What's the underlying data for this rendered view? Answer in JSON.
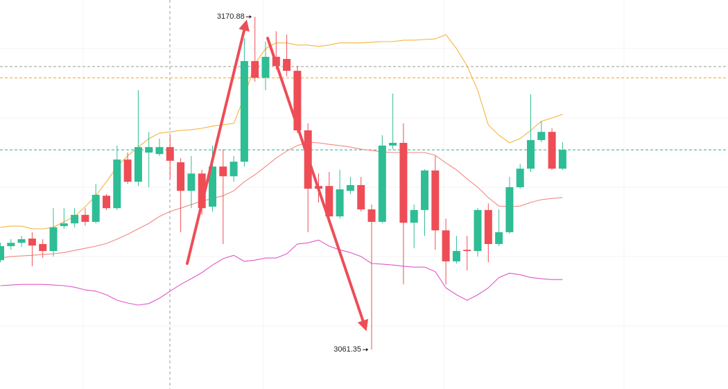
{
  "chart_data": {
    "type": "candlestick",
    "ylim": [
      3048.4,
      3176.4
    ],
    "up_color": "#2ebd95",
    "down_color": "#ee4d56",
    "open": [
      3090.8,
      3095.4,
      3096.5,
      3097.9,
      3096.1,
      3093.8,
      3102.0,
      3102.9,
      3105.7,
      3103.4,
      3112.0,
      3107.9,
      3123.9,
      3116.6,
      3126.2,
      3125.7,
      3128.0,
      3123.0,
      3113.6,
      3119.3,
      3108.4,
      3121.6,
      3118.4,
      3123.2,
      3156.3,
      3150.8,
      3157.7,
      3157.0,
      3153.1,
      3133.5,
      3115.2,
      3115.2,
      3105.2,
      3113.6,
      3115.5,
      3107.5,
      3103.4,
      3128.5,
      3129.4,
      3103.1,
      3107.3,
      3120.3,
      3100.6,
      3090.4,
      3094.2,
      3093.8,
      3107.3,
      3096.1,
      3100.0,
      3114.8,
      3120.9,
      3130.3,
      3133.0,
      3120.9
    ],
    "high": [
      3096.5,
      3097.7,
      3098.8,
      3100.0,
      3097.7,
      3107.9,
      3107.9,
      3107.9,
      3107.9,
      3115.9,
      3112.5,
      3128.5,
      3126.2,
      3146.7,
      3133.0,
      3130.8,
      3131.9,
      3124.4,
      3125.1,
      3120.5,
      3128.5,
      3127.3,
      3125.1,
      3163.8,
      3170.88,
      3162.7,
      3166.1,
      3165.0,
      3154.7,
      3135.8,
      3119.3,
      3119.8,
      3120.5,
      3118.2,
      3118.2,
      3109.1,
      3131.9,
      3145.6,
      3135.8,
      3109.1,
      3120.7,
      3125.1,
      3104.5,
      3098.8,
      3098.8,
      3107.9,
      3109.5,
      3107.5,
      3118.2,
      3122.5,
      3145.4,
      3136.5,
      3134.2,
      3129.6
    ],
    "low": [
      3090.1,
      3094.2,
      3095.2,
      3088.8,
      3091.5,
      3092.0,
      3101.1,
      3101.6,
      3102.2,
      3102.9,
      3107.3,
      3107.3,
      3115.9,
      3115.2,
      3114.8,
      3125.1,
      3117.5,
      3100.0,
      3107.9,
      3105.7,
      3106.8,
      3096.1,
      3116.6,
      3121.6,
      3149.5,
      3146.7,
      3153.6,
      3151.3,
      3132.6,
      3100.0,
      3109.8,
      3104.5,
      3104.5,
      3112.5,
      3106.8,
      3061.35,
      3102.9,
      3127.3,
      3082.8,
      3094.7,
      3098.8,
      3094.2,
      3082.8,
      3089.7,
      3087.4,
      3092.0,
      3090.1,
      3095.4,
      3099.5,
      3114.3,
      3119.8,
      3129.6,
      3120.5,
      3120.5
    ],
    "close": [
      3095.4,
      3096.5,
      3097.7,
      3095.6,
      3093.8,
      3101.6,
      3102.9,
      3105.7,
      3103.4,
      3112.3,
      3107.9,
      3123.9,
      3116.6,
      3128.0,
      3128.0,
      3128.0,
      3123.5,
      3113.6,
      3119.3,
      3107.9,
      3121.6,
      3118.4,
      3123.2,
      3156.3,
      3150.8,
      3157.7,
      3154.7,
      3153.1,
      3133.5,
      3114.3,
      3114.3,
      3105.2,
      3114.1,
      3115.5,
      3107.5,
      3103.4,
      3128.5,
      3129.4,
      3103.1,
      3107.3,
      3120.3,
      3100.6,
      3090.4,
      3093.8,
      3093.8,
      3107.3,
      3096.1,
      3100.0,
      3114.8,
      3120.9,
      3130.3,
      3133.0,
      3120.9,
      3127.1
    ],
    "lines": [
      {
        "color": "#f4b43c",
        "values": [
          3101.6,
          3102.0,
          3102.0,
          3101.1,
          3101.1,
          3101.6,
          3103.4,
          3105.2,
          3108.4,
          3112.0,
          3116.6,
          3121.6,
          3125.1,
          3128.0,
          3130.8,
          3132.6,
          3133.0,
          3133.5,
          3133.7,
          3134.2,
          3134.9,
          3135.3,
          3135.8,
          3144.5,
          3155.4,
          3160.4,
          3162.3,
          3162.3,
          3161.6,
          3161.6,
          3161.1,
          3161.6,
          3162.3,
          3162.3,
          3162.3,
          3162.5,
          3162.7,
          3162.7,
          3163.2,
          3163.2,
          3163.4,
          3163.6,
          3165.0,
          3160.4,
          3154.7,
          3146.7,
          3135.3,
          3131.9,
          3129.4,
          3130.8,
          3133.5,
          3136.5,
          3137.6,
          3138.8
        ]
      },
      {
        "color": "#f2877f",
        "values": [
          3091.5,
          3092.0,
          3092.2,
          3092.4,
          3092.7,
          3092.9,
          3093.3,
          3094.0,
          3094.7,
          3095.4,
          3096.3,
          3097.7,
          3099.3,
          3101.1,
          3102.9,
          3105.2,
          3106.8,
          3107.9,
          3109.1,
          3110.2,
          3111.1,
          3112.0,
          3113.6,
          3116.6,
          3118.9,
          3121.6,
          3124.4,
          3126.7,
          3128.5,
          3129.6,
          3129.4,
          3128.9,
          3128.5,
          3128.0,
          3127.3,
          3126.9,
          3126.4,
          3126.2,
          3126.2,
          3126.2,
          3126.2,
          3125.3,
          3122.8,
          3120.5,
          3117.5,
          3114.8,
          3111.4,
          3108.6,
          3108.4,
          3108.6,
          3109.8,
          3110.7,
          3111.1,
          3111.4
        ]
      },
      {
        "color": "#e055c9",
        "values": [
          3082.4,
          3082.6,
          3082.8,
          3082.8,
          3082.8,
          3082.6,
          3082.4,
          3081.9,
          3081.0,
          3080.6,
          3079.4,
          3077.6,
          3076.7,
          3076.0,
          3076.5,
          3078.3,
          3080.6,
          3082.8,
          3084.7,
          3086.7,
          3089.2,
          3091.3,
          3092.4,
          3090.4,
          3090.8,
          3091.5,
          3091.5,
          3092.9,
          3096.1,
          3096.5,
          3097.4,
          3095.4,
          3094.2,
          3093.3,
          3092.0,
          3089.7,
          3089.5,
          3089.2,
          3088.8,
          3088.5,
          3088.5,
          3087.0,
          3081.7,
          3079.4,
          3077.6,
          3079.4,
          3081.7,
          3085.1,
          3086.5,
          3086.0,
          3085.1,
          3084.7,
          3084.4,
          3084.4
        ]
      }
    ],
    "price_lines": [
      {
        "value": 3154.5,
        "color": "#9a9a9a"
      },
      {
        "value": 3150.8,
        "color": "#f0a020"
      },
      {
        "value": 3127.1,
        "color": "#2ea88f"
      }
    ]
  }
}
